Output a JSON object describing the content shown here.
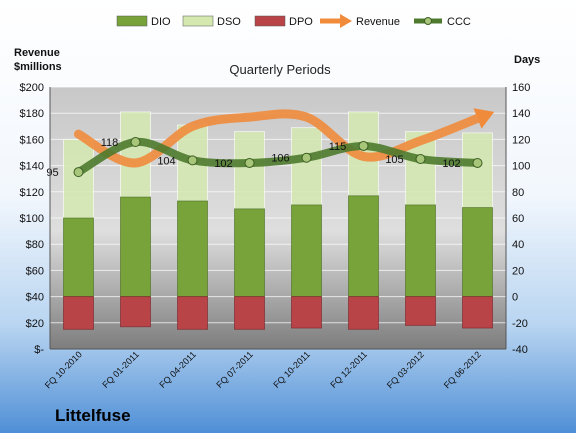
{
  "chart_data": {
    "type": "bar",
    "title": "Quarterly Periods",
    "company": "Littelfuse",
    "left_axis_title": [
      "Revenue",
      "$millions"
    ],
    "right_axis_title": "Days",
    "categories": [
      "FQ 10-2010",
      "FQ 01-2011",
      "FQ 04-2011",
      "FQ 07-2011",
      "FQ 10-2011",
      "FQ 12-2011",
      "FQ 03-2012",
      "FQ 06-2012"
    ],
    "left_ticks": [
      "$200",
      "$180",
      "$160",
      "$140",
      "$120",
      "$100",
      "$80",
      "$60",
      "$40",
      "$20",
      "$-"
    ],
    "left_ylim": [
      0,
      200
    ],
    "right_ticks": [
      "160",
      "140",
      "120",
      "100",
      "80",
      "60",
      "40",
      "20",
      "0",
      "-20",
      "-40"
    ],
    "right_ylim": [
      -40,
      160
    ],
    "legend_position": "top",
    "series": [
      {
        "name": "DIO",
        "axis": "right",
        "values": [
          60,
          76,
          73,
          67,
          70,
          77,
          70,
          68
        ],
        "color": "#77a33a"
      },
      {
        "name": "DSO",
        "axis": "right",
        "values": [
          60,
          65,
          58,
          59,
          59,
          64,
          56,
          57
        ],
        "color": "#d4e8b0"
      },
      {
        "name": "DPO",
        "axis": "right",
        "values": [
          -25,
          -23,
          -25,
          -25,
          -24,
          -25,
          -22,
          -24
        ],
        "color": "#b84448"
      },
      {
        "name": "Revenue",
        "axis": "left",
        "values": [
          164,
          142,
          170,
          177,
          177,
          147,
          159,
          176
        ],
        "color": "#f08b3c"
      },
      {
        "name": "CCC",
        "axis": "right",
        "values": [
          95,
          118,
          104,
          102,
          106,
          115,
          105,
          102
        ],
        "color": "#4d7a2e"
      }
    ]
  }
}
